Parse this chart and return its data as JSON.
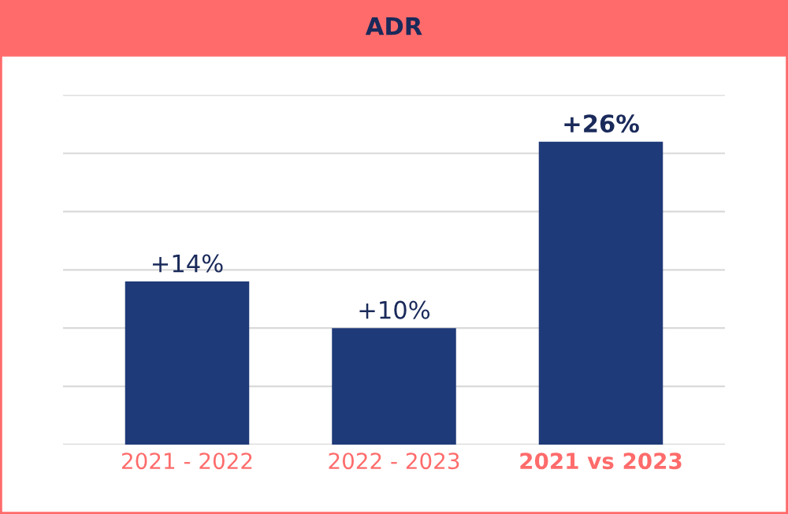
{
  "chart_data": {
    "type": "bar",
    "title": "ADR",
    "categories": [
      "2021 - 2022",
      "2022 - 2023",
      "2021 vs 2023"
    ],
    "values": [
      14,
      10,
      26
    ],
    "value_labels": [
      "+14%",
      "+10%",
      "+26%"
    ],
    "color": "#1f3a78",
    "ylim": [
      0,
      30
    ],
    "yticks": [
      {
        "value": 0,
        "label": null
      },
      {
        "value": 5,
        "label": null
      },
      {
        "value": 10,
        "label": null
      },
      {
        "value": 15,
        "label": null
      },
      {
        "value": 20,
        "label": null
      },
      {
        "value": 25,
        "label": null
      },
      {
        "value": 30,
        "label": null
      }
    ],
    "grid": "y"
  }
}
